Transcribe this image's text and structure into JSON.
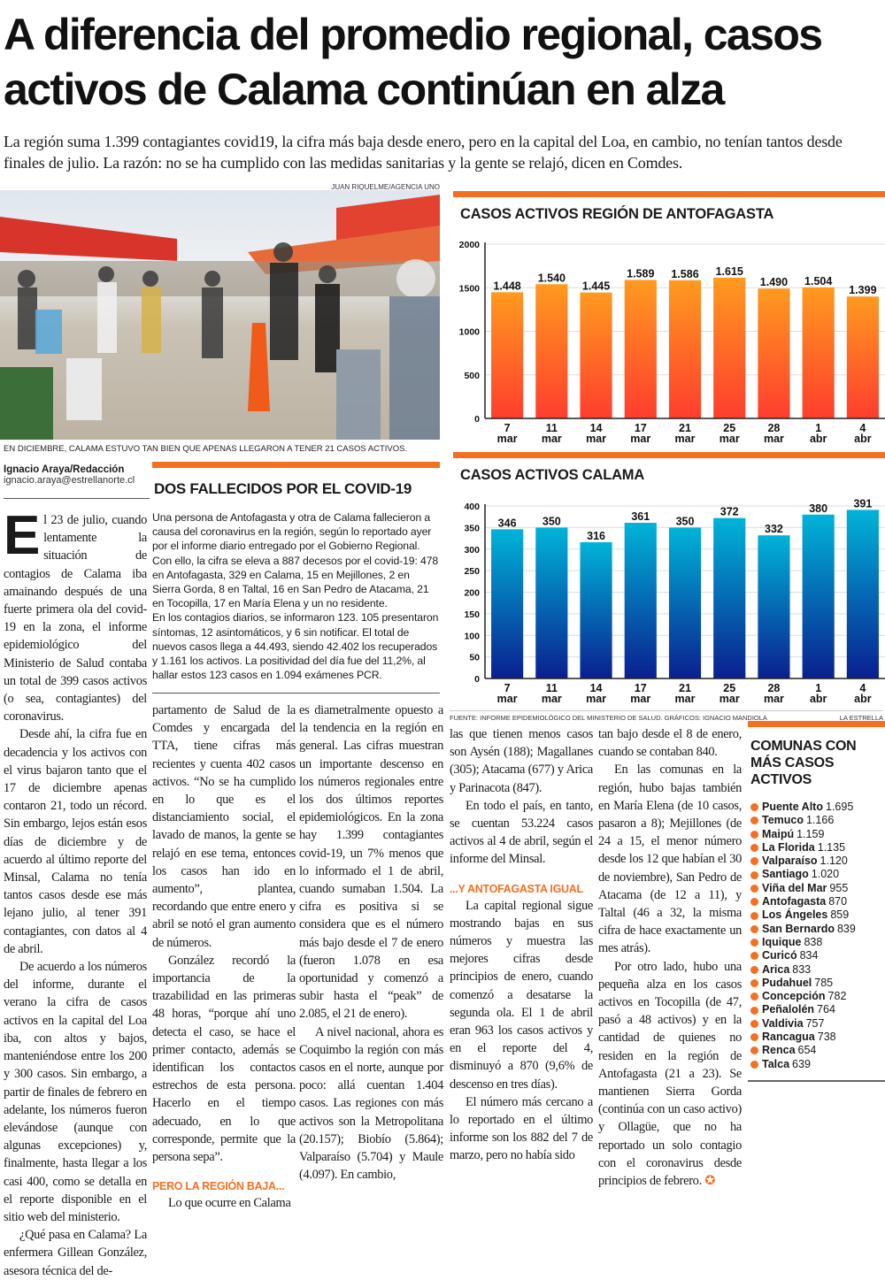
{
  "headline": [
    "A diferencia del promedio regional, casos",
    "activos de Calama continúan en alza"
  ],
  "subhead": "La región suma 1.399 contagiantes covid19, la cifra más baja desde enero, pero en la capital del Loa, en cambio, no tenían tantos desde finales de julio. La razón: no se ha cumplido con las medidas sanitarias y la gente se relajó, dicen en Comdes.",
  "photo": {
    "credit": "JUAN RIQUELME/AGENCIA UNO",
    "caption": "EN DICIEMBRE, CALAMA ESTUVO TAN BIEN QUE APENAS LLEGARON A TENER 21 CASOS ACTIVOS."
  },
  "byline": {
    "name": "Ignacio Araya/Redacción",
    "email": "ignacio.araya@estrellanorte.cl"
  },
  "box": {
    "title": "DOS FALLECIDOS POR EL COVID-19",
    "paragraphs": [
      "Una persona de Antofagasta y otra de Calama fallecieron a causa del coronavirus en la región, según lo reportado ayer por el informe diario entregado por el Gobierno Regional. Con ello, la cifra se eleva a 887 decesos por el covid-19: 478 en Antofagasta, 329 en Calama, 15 en Mejillones, 2 en Sierra Gorda, 8 en Taltal, 16 en San Pedro de Atacama, 21 en Tocopilla, 17 en María Elena y un no residente.",
      "En los contagios diarios, se informaron 123. 105 presentaron síntomas, 12 asintomáticos, y 6 sin notificar. El total de nuevos casos llega a 44.493, siendo 42.402 los recuperados y 1.161 los activos. La positividad del día fue del 11,2%, al hallar estos 123 casos en 1.094 exámenes PCR."
    ]
  },
  "body": {
    "drop_cap": "E",
    "col1": [
      "l 23 de julio, cuando lentamente la situación de contagios de Calama iba amainando después de una fuerte primera ola del covid-19 en la zona, el informe epidemiológico del Ministerio de Salud contaba un total de 399 casos activos (o sea, contagiantes) del coronavirus.",
      "Desde ahí, la cifra fue en decadencia y los activos con el virus bajaron tanto que el 17 de diciembre apenas contaron 21, todo un récord. Sin embargo, lejos están esos días de diciembre y de acuerdo al último reporte del Minsal, Calama no tenía tantos casos desde ese más lejano julio, al tener 391 contagiantes, con datos al 4 de abril.",
      "De acuerdo a los números del informe, durante el verano la cifra de casos activos en la capital del Loa iba, con altos y bajos, manteniéndose entre los 200 y 300 casos. Sin embargo, a partir de finales de febrero en adelante, los números fueron elevándose (aunque con algunas excepciones) y, finalmente, hasta llegar a los casi 400, como se detalla en el reporte disponible en el sitio web del ministerio.",
      "¿Qué pasa en Calama? La enfermera Gillean González, asesora técnica del de-"
    ],
    "col2": [
      "partamento de Salud de la Comdes y encargada del TTA, tiene cifras más recientes y cuenta 402 casos activos. “No se ha cumplido en lo que es el distanciamiento social, el lavado de manos, la gente se relajó en ese tema, entonces los casos han ido en aumento”, plantea, recordando que entre enero y abril se notó el gran aumento de números.",
      "González recordó la importancia de la trazabilidad en las primeras 48 horas, “porque ahí uno detecta el caso, se hace el primer contacto, además se identifican los contactos estrechos de esta persona. Hacerlo en el tiempo adecuado, en lo que corresponde, permite que la persona sepa”."
    ],
    "subtitle1": "PERO LA REGIÓN BAJA...",
    "col2_after": "Lo que ocurre en Calama",
    "col3": [
      "es diametralmente opuesto a la tendencia en la región en general. Las cifras muestran un importante descenso en los números regionales entre los dos últimos reportes epidemiológicos. En la zona hay 1.399 contagiantes covid-19, un 7% menos que lo informado el 1 de abril, cuando sumaban 1.504. La cifra es positiva si se considera que es el número más bajo desde el 7 de enero (fueron 1.078 en esa oportunidad y comenzó a subir hasta el “peak” de 2.085, el 21 de enero).",
      "A nivel nacional, ahora es Coquimbo la región con más casos en el norte, aunque por poco: allá cuentan 1.404 casos. Las regiones con más activos son la Metropolitana (20.157); Biobío (5.864); Valparaíso (5.704) y Maule (4.097). En cambio,"
    ],
    "col4": [
      "las que tienen menos casos son Aysén (188); Magallanes (305); Atacama (677) y Arica y Parinacota (847).",
      "En todo el país, en tanto, se cuentan 53.224 casos activos al 4 de abril, según el informe del Minsal."
    ],
    "subtitle2": "...Y ANTOFAGASTA IGUAL",
    "col4_after": [
      "La capital regional sigue mostrando bajas en sus números y muestra las mejores cifras desde principios de enero, cuando comenzó a desatarse la segunda ola. El 1 de abril eran 963 los casos activos y en el reporte del 4, disminuyó a 870 (9,6% de descenso en tres días).",
      "El número más cercano a lo reportado en el último informe son los 882 del 7 de marzo, pero no había sido"
    ],
    "col5": [
      "tan bajo desde el 8 de enero, cuando se contaban 840.",
      "En las comunas en la región, hubo bajas también en María Elena (de 10 casos, pasaron a 8); Mejillones (de 24 a 15, el menor número desde los 12 que habían el 30 de noviembre), San Pedro de Atacama (de 12 a 11), y Taltal (46 a 32, la misma cifra de hace exactamente un mes atrás).",
      "Por otro lado, hubo una pequeña alza en los casos activos en Tocopilla (de 47, pasó a 48 activos) y en la cantidad de quienes no residen en la región de Antofagasta (21 a 23). Se mantienen Sierra Gorda (continúa con un caso activo) y Ollagüe, que no ha reportado un solo contagio con el coronavirus desde principios de febrero."
    ]
  },
  "source": {
    "left": "FUENTE: INFORME EPIDEMIOLÓGICO DEL MINISTERIO DE SALUD. GRÁFICOS: IGNACIO MANDIOLA",
    "right": "LA ESTRELLA"
  },
  "sidebar": {
    "title": "COMUNAS CON MÁS CASOS ACTIVOS",
    "items": [
      {
        "name": "Puente Alto",
        "value": "1.695"
      },
      {
        "name": "Temuco",
        "value": "1.166"
      },
      {
        "name": "Maipú",
        "value": "1.159"
      },
      {
        "name": "La Florida",
        "value": "1.135"
      },
      {
        "name": "Valparaíso",
        "value": "1.120"
      },
      {
        "name": "Santiago",
        "value": "1.020"
      },
      {
        "name": "Viña del Mar",
        "value": "955"
      },
      {
        "name": "Antofagasta",
        "value": "870"
      },
      {
        "name": "Los Ángeles",
        "value": "859"
      },
      {
        "name": "San Bernardo",
        "value": "839"
      },
      {
        "name": "Iquique",
        "value": "838"
      },
      {
        "name": "Curicó",
        "value": "834"
      },
      {
        "name": "Arica",
        "value": "833"
      },
      {
        "name": "Pudahuel",
        "value": "785"
      },
      {
        "name": "Concepción",
        "value": "782"
      },
      {
        "name": "Peñalolén",
        "value": "764"
      },
      {
        "name": "Valdivia",
        "value": "757"
      },
      {
        "name": "Rancagua",
        "value": "738"
      },
      {
        "name": "Renca",
        "value": "654"
      },
      {
        "name": "Talca",
        "value": "639"
      }
    ]
  },
  "chart_data": [
    {
      "type": "bar",
      "title": "CASOS ACTIVOS REGIÓN DE ANTOFAGASTA",
      "categories": [
        [
          "7",
          "mar"
        ],
        [
          "11",
          "mar"
        ],
        [
          "14",
          "mar"
        ],
        [
          "17",
          "mar"
        ],
        [
          "21",
          "mar"
        ],
        [
          "25",
          "mar"
        ],
        [
          "28",
          "mar"
        ],
        [
          "1",
          "abr"
        ],
        [
          "4",
          "abr"
        ]
      ],
      "values": [
        1448,
        1540,
        1445,
        1589,
        1586,
        1615,
        1490,
        1504,
        1399
      ],
      "labels": [
        "1.448",
        "1.540",
        "1.445",
        "1.589",
        "1.586",
        "1.615",
        "1.490",
        "1.504",
        "1.399"
      ],
      "yticks": [
        0,
        500,
        1000,
        1500,
        2000
      ],
      "ylim": [
        0,
        2000
      ],
      "grid": true,
      "colors": [
        "#ff9a1f",
        "#ff3d2e"
      ]
    },
    {
      "type": "bar",
      "title": "CASOS ACTIVOS CALAMA",
      "categories": [
        [
          "7",
          "mar"
        ],
        [
          "11",
          "mar"
        ],
        [
          "14",
          "mar"
        ],
        [
          "17",
          "mar"
        ],
        [
          "21",
          "mar"
        ],
        [
          "25",
          "mar"
        ],
        [
          "28",
          "mar"
        ],
        [
          "1",
          "abr"
        ],
        [
          "4",
          "abr"
        ]
      ],
      "values": [
        346,
        350,
        316,
        361,
        350,
        372,
        332,
        380,
        391
      ],
      "labels": [
        "346",
        "350",
        "316",
        "361",
        "350",
        "372",
        "332",
        "380",
        "391"
      ],
      "yticks": [
        0,
        50,
        100,
        150,
        200,
        250,
        300,
        350,
        400
      ],
      "ylim": [
        0,
        400
      ],
      "grid": true,
      "colors": [
        "#00b4d8",
        "#0a1f8f"
      ]
    }
  ]
}
